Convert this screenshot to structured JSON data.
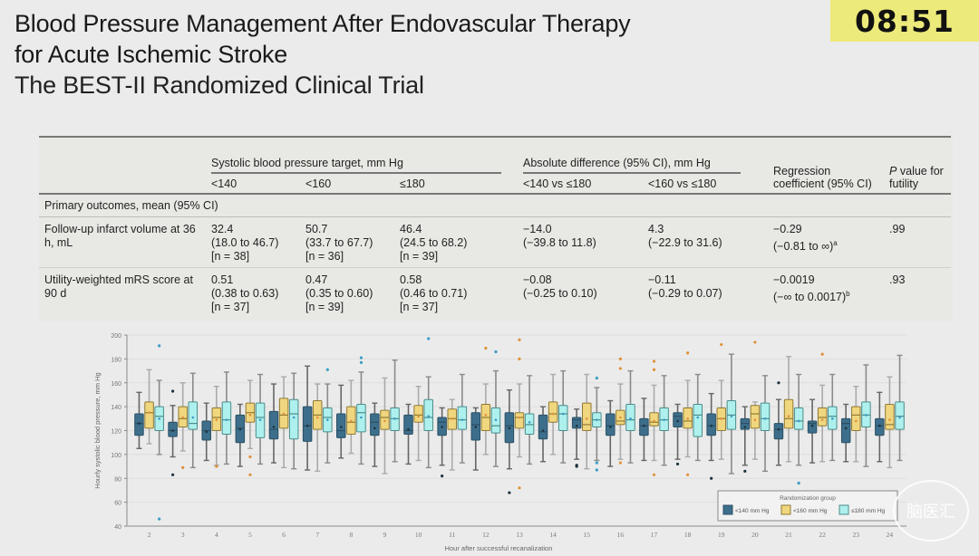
{
  "title": {
    "line1": "Blood Pressure Management After Endovascular Therapy",
    "line2": "for Acute Ischemic Stroke",
    "line3": "The BEST-II Randomized Clinical Trial"
  },
  "timer": "08:51",
  "table": {
    "group1_header": "Systolic blood pressure target, mm Hg",
    "group2_header": "Absolute difference (95% CI), mm Hg",
    "regression_header": "Regression coefficient (95% CI)",
    "pvalue_header_italic": "P",
    "pvalue_header_rest": " value for futility",
    "columns": [
      "<140",
      "<160",
      "≤180",
      "<140 vs ≤180",
      "<160 vs ≤180"
    ],
    "section": "Primary outcomes, mean (95% CI)",
    "rows": [
      {
        "label": "Follow-up infarct volume at 36 h, mL",
        "lt140": {
          "mean": "32.4",
          "ci": "(18.0 to 46.7)",
          "n": "[n = 38]"
        },
        "lt160": {
          "mean": "50.7",
          "ci": "(33.7 to 67.7)",
          "n": "[n = 36]"
        },
        "le180": {
          "mean": "46.4",
          "ci": "(24.5 to 68.2)",
          "n": "[n = 39]"
        },
        "diff1": {
          "mean": "−14.0",
          "ci": "(−39.8 to 11.8)"
        },
        "diff2": {
          "mean": "4.3",
          "ci": "(−22.9 to 31.6)"
        },
        "reg": {
          "mean": "−0.29",
          "ci": "(−0.81 to ∞)",
          "note": "a"
        },
        "p": ".99"
      },
      {
        "label": "Utility-weighted mRS score at 90 d",
        "lt140": {
          "mean": "0.51",
          "ci": "(0.38 to 0.63)",
          "n": "[n = 37]"
        },
        "lt160": {
          "mean": "0.47",
          "ci": "(0.35 to 0.60)",
          "n": "[n = 39]"
        },
        "le180": {
          "mean": "0.58",
          "ci": "(0.46 to 0.71)",
          "n": "[n = 37]"
        },
        "diff1": {
          "mean": "−0.08",
          "ci": "(−0.25 to 0.10)"
        },
        "diff2": {
          "mean": "−0.11",
          "ci": "(−0.29 to 0.07)"
        },
        "reg": {
          "mean": "−0.0019",
          "ci": "(−∞ to 0.0017)",
          "note": "b"
        },
        "p": ".93"
      }
    ]
  },
  "watermark": "脑医汇",
  "chart_data": {
    "type": "box",
    "xlabel": "Hour after successful recanalization",
    "ylabel": "Hourly systolic blood pressure, mm Hg",
    "ylim": [
      40,
      200
    ],
    "yticks": [
      40,
      60,
      80,
      100,
      120,
      140,
      160,
      180,
      200
    ],
    "grid": "horizontal",
    "legend": {
      "title": "Randomization group",
      "placement": "bottom-right",
      "entries": [
        "<140 mm Hg",
        "<160 mm Hg",
        "≤180 mm Hg"
      ]
    },
    "colors": {
      "<140 mm Hg": "#3d6f8c",
      "<160 mm Hg": "#f0d67e",
      "≤180 mm Hg": "#aef0ee"
    },
    "categories": [
      "2",
      "3",
      "4",
      "5",
      "6",
      "7",
      "8",
      "9",
      "10",
      "11",
      "12",
      "13",
      "14",
      "15",
      "16",
      "17",
      "18",
      "19",
      "20",
      "21",
      "22",
      "23",
      "24"
    ],
    "series": [
      {
        "name": "<140 mm Hg",
        "boxes": [
          {
            "low": 105,
            "q1": 116,
            "med": 126,
            "q3": 134,
            "high": 152,
            "mean": 126,
            "outliers": []
          },
          {
            "low": 98,
            "q1": 115,
            "med": 120,
            "q3": 127,
            "high": 141,
            "mean": 120,
            "outliers": [
              153,
              83
            ]
          },
          {
            "low": 95,
            "q1": 112,
            "med": 120,
            "q3": 128,
            "high": 143,
            "mean": 119,
            "outliers": []
          },
          {
            "low": 90,
            "q1": 110,
            "med": 122,
            "q3": 133,
            "high": 142,
            "mean": 121,
            "outliers": []
          },
          {
            "low": 93,
            "q1": 113,
            "med": 121,
            "q3": 136,
            "high": 159,
            "mean": 123,
            "outliers": []
          },
          {
            "low": 87,
            "q1": 111,
            "med": 124,
            "q3": 140,
            "high": 174,
            "mean": 124,
            "outliers": []
          },
          {
            "low": 97,
            "q1": 114,
            "med": 120,
            "q3": 134,
            "high": 158,
            "mean": 123,
            "outliers": []
          },
          {
            "low": 90,
            "q1": 116,
            "med": 127,
            "q3": 134,
            "high": 143,
            "mean": 122,
            "outliers": []
          },
          {
            "low": 92,
            "q1": 117,
            "med": 120,
            "q3": 133,
            "high": 142,
            "mean": 121,
            "outliers": []
          },
          {
            "low": 91,
            "q1": 116,
            "med": 127,
            "q3": 131,
            "high": 139,
            "mean": 123,
            "outliers": [
              82
            ]
          },
          {
            "low": 87,
            "q1": 112,
            "med": 125,
            "q3": 135,
            "high": 139,
            "mean": 123,
            "outliers": []
          },
          {
            "low": 88,
            "q1": 110,
            "med": 124,
            "q3": 135,
            "high": 154,
            "mean": 122,
            "outliers": [
              68
            ]
          },
          {
            "low": 94,
            "q1": 113,
            "med": 119,
            "q3": 133,
            "high": 140,
            "mean": 120,
            "outliers": []
          },
          {
            "low": 96,
            "q1": 122,
            "med": 129,
            "q3": 131,
            "high": 138,
            "mean": 124,
            "outliers": [
              91,
              90
            ]
          },
          {
            "low": 90,
            "q1": 116,
            "med": 124,
            "q3": 134,
            "high": 145,
            "mean": 123,
            "outliers": []
          },
          {
            "low": 95,
            "q1": 116,
            "med": 124,
            "q3": 130,
            "high": 147,
            "mean": 124,
            "outliers": []
          },
          {
            "low": 96,
            "q1": 123,
            "med": 132,
            "q3": 135,
            "high": 142,
            "mean": 128,
            "outliers": [
              92
            ]
          },
          {
            "low": 95,
            "q1": 116,
            "med": 124,
            "q3": 134,
            "high": 151,
            "mean": 124,
            "outliers": [
              80
            ]
          },
          {
            "low": 91,
            "q1": 121,
            "med": 126,
            "q3": 130,
            "high": 140,
            "mean": 123,
            "outliers": [
              86
            ]
          },
          {
            "low": 91,
            "q1": 113,
            "med": 121,
            "q3": 126,
            "high": 146,
            "mean": 121,
            "outliers": [
              160
            ]
          },
          {
            "low": 93,
            "q1": 118,
            "med": 126,
            "q3": 128,
            "high": 146,
            "mean": 124,
            "outliers": []
          },
          {
            "low": 94,
            "q1": 110,
            "med": 126,
            "q3": 130,
            "high": 142,
            "mean": 122,
            "outliers": []
          },
          {
            "low": 94,
            "q1": 116,
            "med": 124,
            "q3": 130,
            "high": 152,
            "mean": 124,
            "outliers": []
          }
        ]
      },
      {
        "name": "<160 mm Hg",
        "boxes": [
          {
            "low": 109,
            "q1": 122,
            "med": 135,
            "q3": 144,
            "high": 171,
            "mean": 135,
            "outliers": []
          },
          {
            "low": 103,
            "q1": 123,
            "med": 130,
            "q3": 140,
            "high": 160,
            "mean": 131,
            "outliers": [
              89
            ]
          },
          {
            "low": 91,
            "q1": 120,
            "med": 131,
            "q3": 139,
            "high": 157,
            "mean": 129,
            "outliers": [
              90
            ]
          },
          {
            "low": 105,
            "q1": 127,
            "med": 135,
            "q3": 143,
            "high": 162,
            "mean": 133,
            "outliers": [
              98,
              83
            ]
          },
          {
            "low": 89,
            "q1": 122,
            "med": 133,
            "q3": 147,
            "high": 165,
            "mean": 134,
            "outliers": []
          },
          {
            "low": 86,
            "q1": 121,
            "med": 133,
            "q3": 145,
            "high": 159,
            "mean": 131,
            "outliers": []
          },
          {
            "low": 101,
            "q1": 117,
            "med": 127,
            "q3": 140,
            "high": 162,
            "mean": 128,
            "outliers": []
          },
          {
            "low": 84,
            "q1": 121,
            "med": 131,
            "q3": 137,
            "high": 164,
            "mean": 128,
            "outliers": []
          },
          {
            "low": 95,
            "q1": 127,
            "med": 133,
            "q3": 141,
            "high": 157,
            "mean": 132,
            "outliers": []
          },
          {
            "low": 87,
            "q1": 121,
            "med": 130,
            "q3": 138,
            "high": 146,
            "mean": 130,
            "outliers": []
          },
          {
            "low": 100,
            "q1": 120,
            "med": 131,
            "q3": 142,
            "high": 159,
            "mean": 133,
            "outliers": [
              189
            ]
          },
          {
            "low": 98,
            "q1": 122,
            "med": 131,
            "q3": 135,
            "high": 159,
            "mean": 131,
            "outliers": [
              196,
              180,
              72
            ]
          },
          {
            "low": 100,
            "q1": 127,
            "med": 134,
            "q3": 144,
            "high": 167,
            "mean": 134,
            "outliers": []
          },
          {
            "low": 88,
            "q1": 120,
            "med": 125,
            "q3": 143,
            "high": 167,
            "mean": 130,
            "outliers": []
          },
          {
            "low": 96,
            "q1": 125,
            "med": 128,
            "q3": 137,
            "high": 159,
            "mean": 131,
            "outliers": [
              180,
              172,
              93
            ]
          },
          {
            "low": 95,
            "q1": 124,
            "med": 127,
            "q3": 135,
            "high": 158,
            "mean": 128,
            "outliers": [
              178,
              171,
              83
            ]
          },
          {
            "low": 98,
            "q1": 122,
            "med": 128,
            "q3": 139,
            "high": 162,
            "mean": 130,
            "outliers": [
              185,
              83
            ]
          },
          {
            "low": 96,
            "q1": 120,
            "med": 130,
            "q3": 139,
            "high": 162,
            "mean": 130,
            "outliers": [
              192
            ]
          },
          {
            "low": 96,
            "q1": 122,
            "med": 134,
            "q3": 141,
            "high": 144,
            "mean": 129,
            "outliers": [
              194
            ]
          },
          {
            "low": 94,
            "q1": 122,
            "med": 130,
            "q3": 146,
            "high": 182,
            "mean": 132,
            "outliers": []
          },
          {
            "low": 94,
            "q1": 124,
            "med": 131,
            "q3": 139,
            "high": 158,
            "mean": 129,
            "outliers": [
              184
            ]
          },
          {
            "low": 94,
            "q1": 120,
            "med": 133,
            "q3": 140,
            "high": 157,
            "mean": 128,
            "outliers": []
          },
          {
            "low": 89,
            "q1": 121,
            "med": 125,
            "q3": 142,
            "high": 165,
            "mean": 129,
            "outliers": []
          }
        ]
      },
      {
        "name": "≤180 mm Hg",
        "boxes": [
          {
            "low": 100,
            "q1": 120,
            "med": 132,
            "q3": 140,
            "high": 162,
            "mean": 130,
            "outliers": [
              191,
              46
            ]
          },
          {
            "low": 89,
            "q1": 121,
            "med": 126,
            "q3": 144,
            "high": 168,
            "mean": 131,
            "outliers": []
          },
          {
            "low": 92,
            "q1": 117,
            "med": 129,
            "q3": 144,
            "high": 169,
            "mean": 129,
            "outliers": []
          },
          {
            "low": 92,
            "q1": 114,
            "med": 131,
            "q3": 143,
            "high": 167,
            "mean": 129,
            "outliers": []
          },
          {
            "low": 88,
            "q1": 113,
            "med": 134,
            "q3": 146,
            "high": 168,
            "mean": 131,
            "outliers": []
          },
          {
            "low": 93,
            "q1": 119,
            "med": 131,
            "q3": 139,
            "high": 159,
            "mean": 129,
            "outliers": [
              171
            ]
          },
          {
            "low": 92,
            "q1": 119,
            "med": 135,
            "q3": 142,
            "high": 169,
            "mean": 131,
            "outliers": [
              181,
              177
            ]
          },
          {
            "low": 94,
            "q1": 120,
            "med": 130,
            "q3": 139,
            "high": 179,
            "mean": 130,
            "outliers": []
          },
          {
            "low": 89,
            "q1": 120,
            "med": 131,
            "q3": 146,
            "high": 165,
            "mean": 132,
            "outliers": [
              197
            ]
          },
          {
            "low": 93,
            "q1": 121,
            "med": 129,
            "q3": 140,
            "high": 167,
            "mean": 129,
            "outliers": []
          },
          {
            "low": 90,
            "q1": 118,
            "med": 124,
            "q3": 139,
            "high": 170,
            "mean": 129,
            "outliers": [
              186
            ]
          },
          {
            "low": 92,
            "q1": 117,
            "med": 125,
            "q3": 134,
            "high": 166,
            "mean": 127,
            "outliers": []
          },
          {
            "low": 93,
            "q1": 120,
            "med": 134,
            "q3": 141,
            "high": 170,
            "mean": 134,
            "outliers": []
          },
          {
            "low": 95,
            "q1": 123,
            "med": 129,
            "q3": 135,
            "high": 156,
            "mean": 129,
            "outliers": [
              164,
              93,
              87
            ]
          },
          {
            "low": 93,
            "q1": 120,
            "med": 129,
            "q3": 142,
            "high": 170,
            "mean": 130,
            "outliers": []
          },
          {
            "low": 91,
            "q1": 120,
            "med": 129,
            "q3": 139,
            "high": 166,
            "mean": 129,
            "outliers": []
          },
          {
            "low": 95,
            "q1": 115,
            "med": 133,
            "q3": 142,
            "high": 167,
            "mean": 131,
            "outliers": []
          },
          {
            "low": 84,
            "q1": 121,
            "med": 133,
            "q3": 145,
            "high": 184,
            "mean": 132,
            "outliers": []
          },
          {
            "low": 86,
            "q1": 120,
            "med": 130,
            "q3": 143,
            "high": 166,
            "mean": 130,
            "outliers": []
          },
          {
            "low": 91,
            "q1": 121,
            "med": 128,
            "q3": 139,
            "high": 167,
            "mean": 128,
            "outliers": [
              76
            ]
          },
          {
            "low": 95,
            "q1": 121,
            "med": 132,
            "q3": 140,
            "high": 167,
            "mean": 130,
            "outliers": []
          },
          {
            "low": 90,
            "q1": 123,
            "med": 133,
            "q3": 144,
            "high": 175,
            "mean": 133,
            "outliers": []
          },
          {
            "low": 95,
            "q1": 121,
            "med": 132,
            "q3": 144,
            "high": 183,
            "mean": 131,
            "outliers": []
          }
        ]
      }
    ]
  }
}
